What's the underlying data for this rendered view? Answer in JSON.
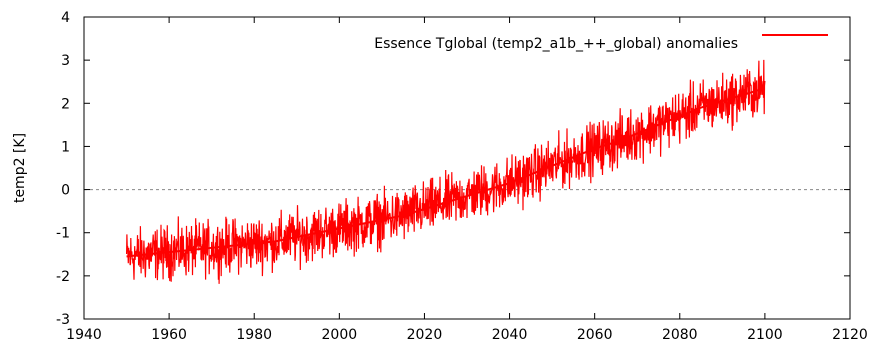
{
  "chart_data": {
    "type": "line",
    "title": "",
    "xlabel": "",
    "ylabel": "temp2 [K]",
    "xlim": [
      1940,
      2120
    ],
    "ylim": [
      -3,
      4
    ],
    "xticks": [
      1940,
      1960,
      1980,
      2000,
      2020,
      2040,
      2060,
      2080,
      2100,
      2120
    ],
    "yticks": [
      -3,
      -2,
      -1,
      0,
      1,
      2,
      3,
      4
    ],
    "zero_line": true,
    "grid": false,
    "legend_position": "top-right",
    "series": [
      {
        "name": "Essence Tglobal (temp2_a1b_++_global) anomalies",
        "color": "#ff0000",
        "x": [
          1950,
          1955,
          1960,
          1965,
          1970,
          1975,
          1980,
          1985,
          1990,
          1995,
          2000,
          2005,
          2010,
          2015,
          2020,
          2025,
          2030,
          2035,
          2040,
          2045,
          2050,
          2055,
          2060,
          2065,
          2070,
          2075,
          2080,
          2085,
          2090,
          2095,
          2100
        ],
        "y": [
          -1.55,
          -1.5,
          -1.45,
          -1.4,
          -1.35,
          -1.3,
          -1.25,
          -1.2,
          -1.1,
          -1.0,
          -0.9,
          -0.8,
          -0.7,
          -0.6,
          -0.45,
          -0.3,
          -0.15,
          0.0,
          0.15,
          0.35,
          0.55,
          0.75,
          0.95,
          1.1,
          1.3,
          1.5,
          1.7,
          1.9,
          2.05,
          2.2,
          2.35
        ],
        "variability_range": 0.6
      }
    ]
  }
}
